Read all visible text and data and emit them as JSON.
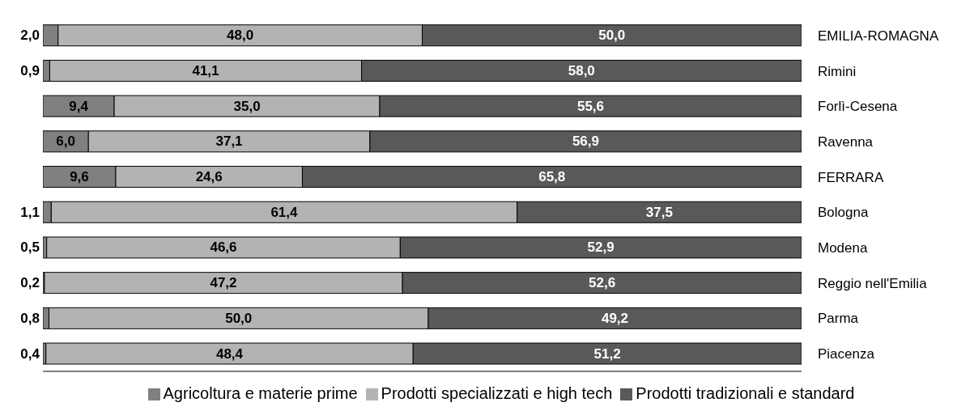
{
  "chart_data": {
    "type": "bar",
    "orientation": "horizontal",
    "stacked": true,
    "categories": [
      "EMILIA-ROMAGNA",
      "Rimini",
      "Forlì-Cesena",
      "Ravenna",
      "FERRARA",
      "Bologna",
      "Modena",
      "Reggio nell'Emilia",
      "Parma",
      "Piacenza"
    ],
    "series": [
      {
        "name": "Agricoltura e materie prime",
        "color": "#808080",
        "values": [
          2.0,
          0.9,
          9.4,
          6.0,
          9.6,
          1.1,
          0.5,
          0.2,
          0.8,
          0.4
        ],
        "value_labels": [
          "2,0",
          "0,9",
          "9,4",
          "6,0",
          "9,6",
          "1,1",
          "0,5",
          "0,2",
          "0,8",
          "0,4"
        ]
      },
      {
        "name": "Prodotti specializzati e high tech",
        "color": "#b3b3b3",
        "values": [
          48.0,
          41.1,
          35.0,
          37.1,
          24.6,
          61.4,
          46.6,
          47.2,
          50.0,
          48.4
        ],
        "value_labels": [
          "48,0",
          "41,1",
          "35,0",
          "37,1",
          "24,6",
          "61,4",
          "46,6",
          "47,2",
          "50,0",
          "48,4"
        ]
      },
      {
        "name": "Prodotti tradizionali e standard",
        "color": "#595959",
        "values": [
          50.0,
          58.0,
          55.6,
          56.9,
          65.8,
          37.5,
          52.9,
          52.6,
          49.2,
          51.2
        ],
        "value_labels": [
          "50,0",
          "58,0",
          "55,6",
          "56,9",
          "65,8",
          "37,5",
          "52,9",
          "52,6",
          "49,2",
          "51,2"
        ]
      }
    ],
    "tick_labels": "y",
    "legend": "bottom"
  }
}
